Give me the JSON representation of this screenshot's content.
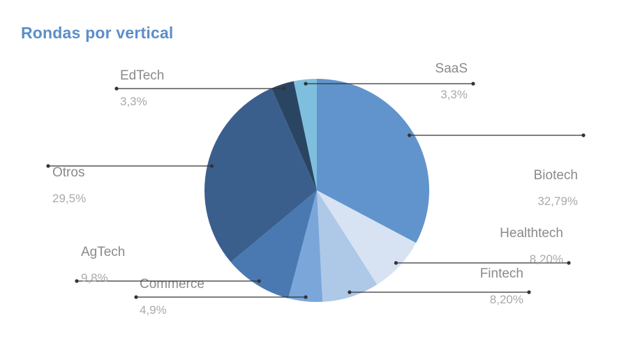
{
  "title": "Rondas por vertical",
  "chart_data": {
    "type": "pie",
    "title": "Rondas por vertical",
    "slices": [
      {
        "label": "Biotech",
        "value": 32.79,
        "display": "32,79%",
        "color": "#6194cc"
      },
      {
        "label": "Healthtech",
        "value": 8.2,
        "display": "8,20%",
        "color": "#d7e3f3"
      },
      {
        "label": "Fintech",
        "value": 8.2,
        "display": "8,20%",
        "color": "#aec8e7"
      },
      {
        "label": "Commerce",
        "value": 4.9,
        "display": "4,9%",
        "color": "#7aa6da"
      },
      {
        "label": "AgTech",
        "value": 9.8,
        "display": "9,8%",
        "color": "#4a79b2"
      },
      {
        "label": "Otros",
        "value": 29.5,
        "display": "29,5%",
        "color": "#3b5f8d"
      },
      {
        "label": "EdTech",
        "value": 3.3,
        "display": "3,3%",
        "color": "#2a4562"
      },
      {
        "label": "SaaS",
        "value": 3.3,
        "display": "3,3%",
        "color": "#7fbfde"
      }
    ],
    "legend": "leader-line labels"
  }
}
